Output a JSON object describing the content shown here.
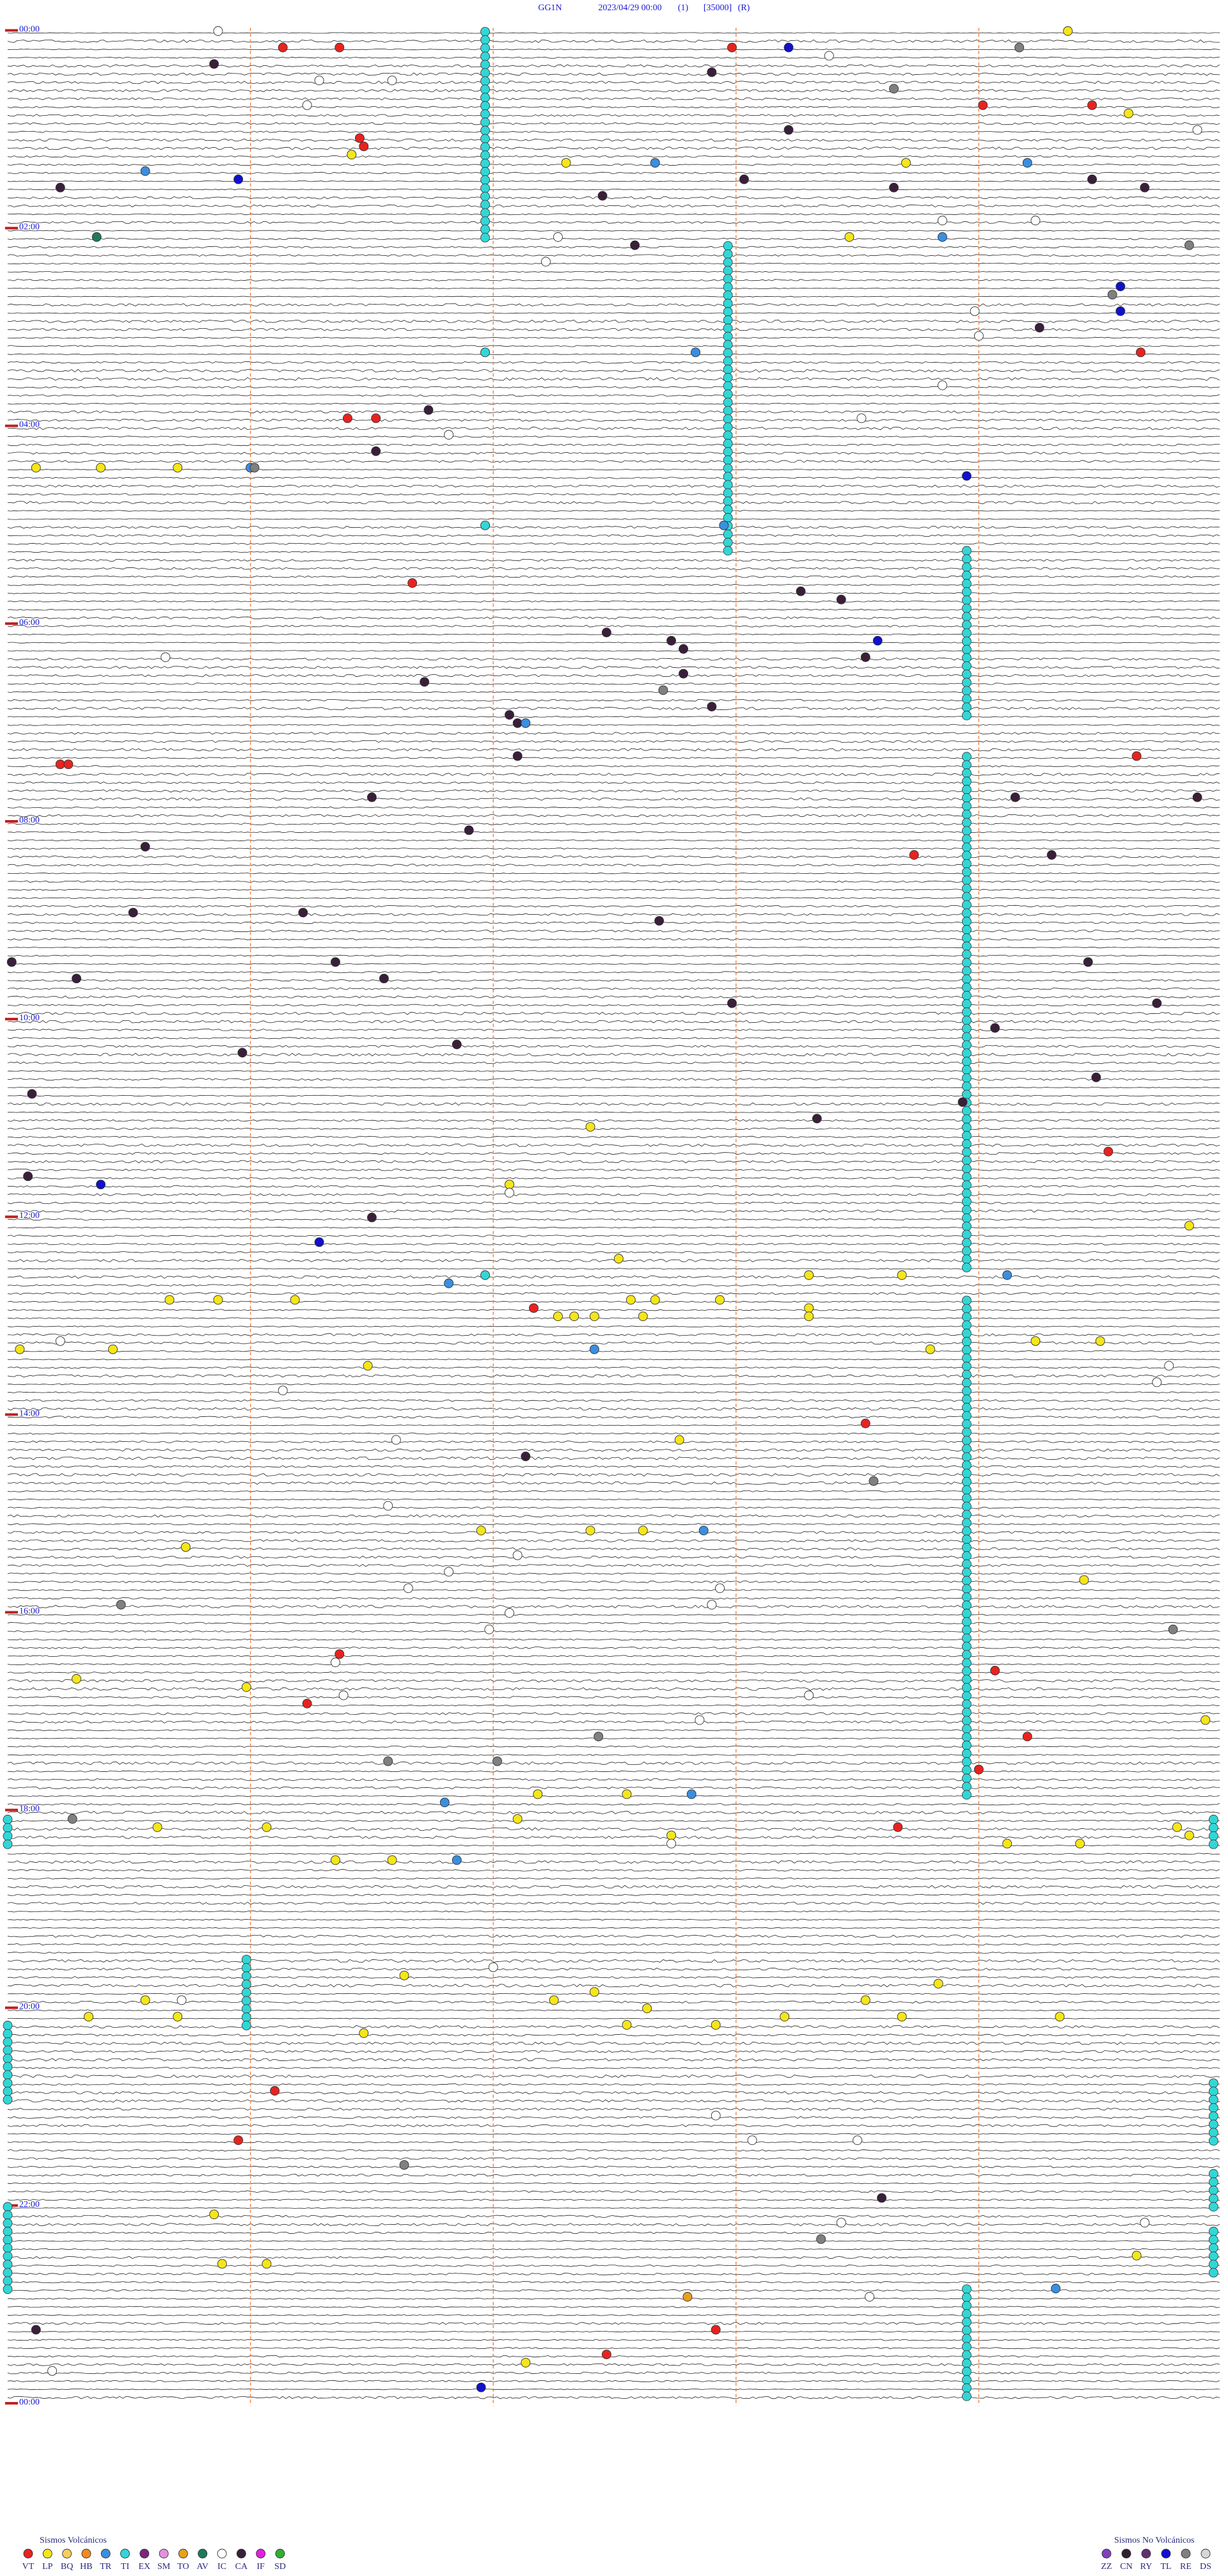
{
  "chart_data": {
    "type": "helicorder",
    "station": "GG1N",
    "date": "2023/04/29 00:00",
    "channel": "(1)",
    "scale": "[35000]",
    "mode": "(R)",
    "xlim": [
      0,
      300
    ],
    "xticks": [
      60,
      120,
      180,
      240
    ],
    "rows": 288,
    "hour_labels": [
      "00:00",
      "02:00",
      "04:00",
      "06:00",
      "08:00",
      "10:00",
      "12:00",
      "14:00",
      "16:00",
      "18:00",
      "20:00",
      "22:00",
      "00:00"
    ],
    "legend_volcanic_title": "Sismos Volcánicos",
    "legend_nonvolcanic_title": "Sismos No Volcánicos",
    "legend_volcanic": [
      {
        "code": "VT",
        "color": "#e8231f"
      },
      {
        "code": "LP",
        "color": "#f5e61a"
      },
      {
        "code": "BQ",
        "color": "#f4d060"
      },
      {
        "code": "HB",
        "color": "#f08a24"
      },
      {
        "code": "TR",
        "color": "#3a8fe0"
      },
      {
        "code": "TI",
        "color": "#33d6d6"
      },
      {
        "code": "EX",
        "color": "#7a2a7a"
      },
      {
        "code": "SM",
        "color": "#e890e0"
      },
      {
        "code": "TO",
        "color": "#e8a020"
      },
      {
        "code": "AV",
        "color": "#1f7a5a"
      },
      {
        "code": "IC",
        "color": "#ffffff"
      },
      {
        "code": "CA",
        "color": "#3a1f3a"
      },
      {
        "code": "IF",
        "color": "#e020e0"
      },
      {
        "code": "SD",
        "color": "#30b030"
      }
    ],
    "legend_nonvolcanic": [
      {
        "code": "ZZ",
        "color": "#8040c0"
      },
      {
        "code": "CN",
        "color": "#302030"
      },
      {
        "code": "RY",
        "color": "#603070"
      },
      {
        "code": "TL",
        "color": "#1010d0"
      },
      {
        "code": "RE",
        "color": "#808080"
      },
      {
        "code": "DS",
        "color": "#d8d8d8"
      }
    ],
    "swarms": [
      {
        "type": "TI",
        "second": 118,
        "from_row": 0,
        "to_row": 25
      },
      {
        "type": "TI",
        "second": 178,
        "from_row": 26,
        "to_row": 63
      },
      {
        "type": "TI",
        "second": 237,
        "from_row": 63,
        "to_row": 83
      },
      {
        "type": "TI",
        "second": 237,
        "from_row": 88,
        "to_row": 150
      },
      {
        "type": "TI",
        "second": 237,
        "from_row": 154,
        "to_row": 214
      },
      {
        "type": "TI",
        "second": 0,
        "from_row": 217,
        "to_row": 220
      },
      {
        "type": "TI",
        "second": 298,
        "from_row": 217,
        "to_row": 220
      },
      {
        "type": "TI",
        "second": 59,
        "from_row": 234,
        "to_row": 242
      },
      {
        "type": "TI",
        "second": 0,
        "from_row": 242,
        "to_row": 251
      },
      {
        "type": "TI",
        "second": 298,
        "from_row": 249,
        "to_row": 256
      },
      {
        "type": "TI",
        "second": 298,
        "from_row": 260,
        "to_row": 264
      },
      {
        "type": "TI",
        "second": 0,
        "from_row": 264,
        "to_row": 274
      },
      {
        "type": "TI",
        "second": 298,
        "from_row": 267,
        "to_row": 272
      },
      {
        "type": "TI",
        "second": 237,
        "from_row": 274,
        "to_row": 287
      }
    ],
    "events": [
      [
        0,
        52,
        "IC"
      ],
      [
        0,
        262,
        "LP"
      ],
      [
        2,
        68,
        "VT"
      ],
      [
        2,
        82,
        "VT"
      ],
      [
        2,
        179,
        "VT"
      ],
      [
        2,
        193,
        "TL"
      ],
      [
        2,
        250,
        "RE"
      ],
      [
        3,
        203,
        "IC"
      ],
      [
        4,
        51,
        "CA"
      ],
      [
        5,
        174,
        "CA"
      ],
      [
        6,
        77,
        "IC"
      ],
      [
        6,
        95,
        "IC"
      ],
      [
        7,
        219,
        "RE"
      ],
      [
        9,
        74,
        "IC"
      ],
      [
        9,
        241,
        "VT"
      ],
      [
        9,
        268,
        "VT"
      ],
      [
        10,
        277,
        "LP"
      ],
      [
        12,
        193,
        "CA"
      ],
      [
        12,
        294,
        "IC"
      ],
      [
        13,
        87,
        "VT"
      ],
      [
        14,
        88,
        "VT"
      ],
      [
        15,
        85,
        "LP"
      ],
      [
        16,
        138,
        "LP"
      ],
      [
        16,
        160,
        "TR"
      ],
      [
        16,
        222,
        "LP"
      ],
      [
        16,
        252,
        "TR"
      ],
      [
        17,
        34,
        "TR"
      ],
      [
        18,
        57,
        "TL"
      ],
      [
        18,
        182,
        "CA"
      ],
      [
        18,
        268,
        "CA"
      ],
      [
        19,
        13,
        "CA"
      ],
      [
        19,
        219,
        "CA"
      ],
      [
        19,
        281,
        "CA"
      ],
      [
        20,
        147,
        "CA"
      ],
      [
        23,
        231,
        "IC"
      ],
      [
        23,
        254,
        "IC"
      ],
      [
        25,
        22,
        "AV"
      ],
      [
        25,
        136,
        "IC"
      ],
      [
        25,
        208,
        "LP"
      ],
      [
        25,
        231,
        "TR"
      ],
      [
        26,
        155,
        "CA"
      ],
      [
        26,
        292,
        "RE"
      ],
      [
        28,
        133,
        "IC"
      ],
      [
        31,
        275,
        "TL"
      ],
      [
        32,
        273,
        "RE"
      ],
      [
        34,
        275,
        "TL"
      ],
      [
        34,
        239,
        "IC"
      ],
      [
        36,
        255,
        "CA"
      ],
      [
        37,
        240,
        "IC"
      ],
      [
        39,
        118,
        "TI"
      ],
      [
        39,
        170,
        "TR"
      ],
      [
        39,
        280,
        "VT"
      ],
      [
        43,
        231,
        "IC"
      ],
      [
        46,
        104,
        "CA"
      ],
      [
        47,
        211,
        "IC"
      ],
      [
        47,
        84,
        "VT"
      ],
      [
        47,
        91,
        "VT"
      ],
      [
        49,
        109,
        "IC"
      ],
      [
        51,
        91,
        "CA"
      ],
      [
        53,
        7,
        "LP"
      ],
      [
        53,
        23,
        "LP"
      ],
      [
        53,
        42,
        "LP"
      ],
      [
        53,
        60,
        "TR"
      ],
      [
        53,
        61,
        "RE"
      ],
      [
        54,
        237,
        "TL"
      ],
      [
        60,
        118,
        "TI"
      ],
      [
        60,
        177,
        "TR"
      ],
      [
        67,
        100,
        "VT"
      ],
      [
        68,
        196,
        "CA"
      ],
      [
        69,
        206,
        "CA"
      ],
      [
        73,
        148,
        "CA"
      ],
      [
        74,
        164,
        "CA"
      ],
      [
        74,
        215,
        "TL"
      ],
      [
        75,
        167,
        "CA"
      ],
      [
        76,
        39,
        "IC"
      ],
      [
        76,
        212,
        "CA"
      ],
      [
        78,
        167,
        "CA"
      ],
      [
        79,
        103,
        "CA"
      ],
      [
        80,
        162,
        "RE"
      ],
      [
        82,
        174,
        "CA"
      ],
      [
        83,
        124,
        "CA"
      ],
      [
        84,
        126,
        "CA"
      ],
      [
        84,
        128,
        "TR"
      ],
      [
        88,
        126,
        "CA"
      ],
      [
        88,
        279,
        "VT"
      ],
      [
        89,
        13,
        "VT"
      ],
      [
        89,
        15,
        "VT"
      ],
      [
        93,
        90,
        "CA"
      ],
      [
        93,
        249,
        "CA"
      ],
      [
        93,
        294,
        "CA"
      ],
      [
        97,
        114,
        "CA"
      ],
      [
        99,
        34,
        "CA"
      ],
      [
        100,
        224,
        "VT"
      ],
      [
        100,
        258,
        "CA"
      ],
      [
        107,
        31,
        "CA"
      ],
      [
        107,
        73,
        "CA"
      ],
      [
        108,
        161,
        "CA"
      ],
      [
        113,
        1,
        "CA"
      ],
      [
        113,
        81,
        "CA"
      ],
      [
        113,
        267,
        "CA"
      ],
      [
        115,
        17,
        "CA"
      ],
      [
        115,
        93,
        "CA"
      ],
      [
        118,
        179,
        "CA"
      ],
      [
        118,
        284,
        "CA"
      ],
      [
        121,
        244,
        "CA"
      ],
      [
        123,
        111,
        "CA"
      ],
      [
        124,
        58,
        "CA"
      ],
      [
        127,
        269,
        "CA"
      ],
      [
        129,
        6,
        "CA"
      ],
      [
        130,
        236,
        "CA"
      ],
      [
        132,
        200,
        "CA"
      ],
      [
        133,
        144,
        "LP"
      ],
      [
        136,
        272,
        "VT"
      ],
      [
        139,
        5,
        "CA"
      ],
      [
        140,
        23,
        "TL"
      ],
      [
        140,
        124,
        "LP"
      ],
      [
        141,
        124,
        "IC"
      ],
      [
        144,
        90,
        "CA"
      ],
      [
        145,
        292,
        "LP"
      ],
      [
        147,
        77,
        "TL"
      ],
      [
        149,
        151,
        "LP"
      ],
      [
        151,
        118,
        "TI"
      ],
      [
        151,
        198,
        "LP"
      ],
      [
        151,
        221,
        "LP"
      ],
      [
        151,
        247,
        "TR"
      ],
      [
        152,
        109,
        "TR"
      ],
      [
        154,
        40,
        "LP"
      ],
      [
        154,
        52,
        "LP"
      ],
      [
        154,
        71,
        "LP"
      ],
      [
        154,
        154,
        "LP"
      ],
      [
        154,
        160,
        "LP"
      ],
      [
        154,
        176,
        "LP"
      ],
      [
        155,
        198,
        "LP"
      ],
      [
        155,
        130,
        "VT"
      ],
      [
        156,
        136,
        "LP"
      ],
      [
        156,
        140,
        "LP"
      ],
      [
        156,
        145,
        "LP"
      ],
      [
        156,
        157,
        "LP"
      ],
      [
        156,
        198,
        "LP"
      ],
      [
        159,
        13,
        "IC"
      ],
      [
        159,
        254,
        "LP"
      ],
      [
        159,
        270,
        "LP"
      ],
      [
        160,
        3,
        "LP"
      ],
      [
        160,
        26,
        "LP"
      ],
      [
        160,
        145,
        "TR"
      ],
      [
        160,
        228,
        "LP"
      ],
      [
        162,
        89,
        "LP"
      ],
      [
        162,
        287,
        "IC"
      ],
      [
        164,
        284,
        "IC"
      ],
      [
        165,
        68,
        "IC"
      ],
      [
        169,
        212,
        "VT"
      ],
      [
        171,
        96,
        "IC"
      ],
      [
        171,
        166,
        "LP"
      ],
      [
        173,
        128,
        "CA"
      ],
      [
        176,
        214,
        "RE"
      ],
      [
        179,
        94,
        "IC"
      ],
      [
        182,
        117,
        "LP"
      ],
      [
        182,
        144,
        "LP"
      ],
      [
        182,
        157,
        "LP"
      ],
      [
        182,
        172,
        "TR"
      ],
      [
        184,
        44,
        "LP"
      ],
      [
        185,
        126,
        "IC"
      ],
      [
        187,
        109,
        "IC"
      ],
      [
        188,
        266,
        "LP"
      ],
      [
        189,
        99,
        "IC"
      ],
      [
        189,
        176,
        "IC"
      ],
      [
        191,
        28,
        "RE"
      ],
      [
        191,
        174,
        "IC"
      ],
      [
        192,
        124,
        "IC"
      ],
      [
        194,
        119,
        "IC"
      ],
      [
        194,
        288,
        "RE"
      ],
      [
        197,
        82,
        "VT"
      ],
      [
        198,
        81,
        "IC"
      ],
      [
        199,
        244,
        "VT"
      ],
      [
        200,
        17,
        "LP"
      ],
      [
        201,
        59,
        "LP"
      ],
      [
        202,
        83,
        "IC"
      ],
      [
        202,
        198,
        "IC"
      ],
      [
        203,
        74,
        "VT"
      ],
      [
        205,
        296,
        "LP"
      ],
      [
        205,
        171,
        "IC"
      ],
      [
        207,
        146,
        "RE"
      ],
      [
        207,
        252,
        "VT"
      ],
      [
        210,
        94,
        "RE"
      ],
      [
        210,
        121,
        "RE"
      ],
      [
        211,
        240,
        "VT"
      ],
      [
        214,
        131,
        "LP"
      ],
      [
        214,
        153,
        "LP"
      ],
      [
        214,
        169,
        "TR"
      ],
      [
        215,
        108,
        "TR"
      ],
      [
        217,
        16,
        "RE"
      ],
      [
        217,
        126,
        "LP"
      ],
      [
        218,
        37,
        "LP"
      ],
      [
        218,
        64,
        "LP"
      ],
      [
        218,
        220,
        "VT"
      ],
      [
        218,
        289,
        "LP"
      ],
      [
        219,
        164,
        "LP"
      ],
      [
        219,
        292,
        "LP"
      ],
      [
        220,
        164,
        "IC"
      ],
      [
        220,
        247,
        "LP"
      ],
      [
        220,
        265,
        "LP"
      ],
      [
        222,
        81,
        "LP"
      ],
      [
        222,
        95,
        "LP"
      ],
      [
        222,
        111,
        "TR"
      ],
      [
        235,
        120,
        "IC"
      ],
      [
        236,
        98,
        "LP"
      ],
      [
        237,
        230,
        "LP"
      ],
      [
        238,
        145,
        "LP"
      ],
      [
        239,
        43,
        "IC"
      ],
      [
        239,
        34,
        "LP"
      ],
      [
        239,
        135,
        "LP"
      ],
      [
        239,
        212,
        "LP"
      ],
      [
        240,
        158,
        "LP"
      ],
      [
        241,
        20,
        "LP"
      ],
      [
        241,
        42,
        "LP"
      ],
      [
        241,
        192,
        "LP"
      ],
      [
        241,
        221,
        "LP"
      ],
      [
        241,
        260,
        "LP"
      ],
      [
        242,
        153,
        "LP"
      ],
      [
        242,
        175,
        "LP"
      ],
      [
        243,
        88,
        "LP"
      ],
      [
        250,
        66,
        "VT"
      ],
      [
        253,
        175,
        "IC"
      ],
      [
        256,
        184,
        "IC"
      ],
      [
        256,
        210,
        "IC"
      ],
      [
        256,
        57,
        "VT"
      ],
      [
        259,
        98,
        "RE"
      ],
      [
        263,
        216,
        "CA"
      ],
      [
        265,
        51,
        "LP"
      ],
      [
        266,
        206,
        "IC"
      ],
      [
        266,
        281,
        "IC"
      ],
      [
        268,
        201,
        "RE"
      ],
      [
        270,
        279,
        "LP"
      ],
      [
        271,
        53,
        "LP"
      ],
      [
        271,
        64,
        "LP"
      ],
      [
        274,
        259,
        "TR"
      ],
      [
        275,
        168,
        "TO"
      ],
      [
        275,
        213,
        "IC"
      ],
      [
        279,
        7,
        "CA"
      ],
      [
        279,
        175,
        "VT"
      ],
      [
        282,
        148,
        "VT"
      ],
      [
        283,
        128,
        "LP"
      ],
      [
        284,
        11,
        "IC"
      ],
      [
        286,
        117,
        "TL"
      ]
    ]
  }
}
